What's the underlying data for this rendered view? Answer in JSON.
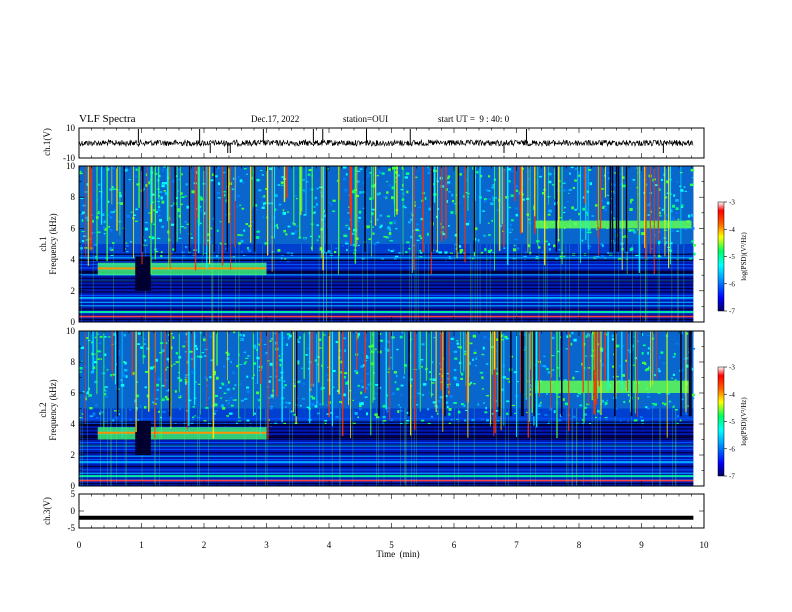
{
  "header": {
    "title": "VLF Spectra",
    "date": "Dec.17, 2022",
    "station": "station=OUI",
    "start": "start UT =  9 : 40: 0"
  },
  "colors": {
    "background_low": "#000080",
    "scale": [
      "#000080",
      "#0000ff",
      "#00a0ff",
      "#00ffff",
      "#00ff60",
      "#ffff00",
      "#ff8000",
      "#ff0000",
      "#ffffff"
    ]
  },
  "chart_data": [
    {
      "type": "line",
      "panel": "ch1-waveform",
      "ylabel": "ch.1(V)",
      "ylim": [
        -10,
        10
      ],
      "ytick_labels": [
        "10",
        "-10"
      ],
      "xlim": [
        0,
        10
      ],
      "baseline": 0
    },
    {
      "type": "heatmap",
      "panel": "ch1-spectrogram",
      "ylabel": "ch.1\nFrequency  (kHz)",
      "ylim": [
        0,
        10
      ],
      "ytick_labels": [
        "0",
        "2",
        "4",
        "6",
        "8",
        "10"
      ],
      "xlim": [
        0,
        10
      ],
      "colorbar": {
        "label": "log(PSD)(V²/Hz)",
        "range": [
          -7,
          -3
        ],
        "tick_labels": [
          "-3",
          "-4",
          "-5",
          "-6",
          "-7"
        ]
      },
      "features": {
        "band_khz": [
          3.0,
          3.8
        ],
        "band_minutes": [
          0.3,
          3.0
        ],
        "upper_band_khz": [
          6.0,
          6.5
        ],
        "upper_band_minutes": [
          7.3,
          9.8
        ]
      }
    },
    {
      "type": "heatmap",
      "panel": "ch2-spectrogram",
      "ylabel": "ch.2\nFrequency  (kHz)",
      "ylim": [
        0,
        10
      ],
      "ytick_labels": [
        "0",
        "2",
        "4",
        "6",
        "8",
        "10"
      ],
      "xlim": [
        0,
        10
      ],
      "colorbar": {
        "label": "log(PSD)(V²/Hz)",
        "range": [
          -7,
          -3
        ],
        "tick_labels": [
          "-3",
          "-4",
          "-5",
          "-6",
          "-7"
        ]
      },
      "features": {
        "band_khz": [
          3.0,
          3.8
        ],
        "band_minutes": [
          0.3,
          3.0
        ],
        "upper_band_khz": [
          6.0,
          6.8
        ],
        "upper_band_minutes": [
          7.3,
          9.8
        ]
      }
    },
    {
      "type": "line",
      "panel": "ch3-waveform",
      "ylabel": "ch.3(V)",
      "ylim": [
        -5,
        5
      ],
      "ytick_labels": [
        "5",
        "0",
        "-5"
      ],
      "xlim": [
        0,
        10
      ],
      "baseline": -2
    }
  ],
  "xaxis": {
    "label": "Time  (min)",
    "tick_labels": [
      "0",
      "1",
      "2",
      "3",
      "4",
      "5",
      "6",
      "7",
      "8",
      "9",
      "10"
    ]
  }
}
